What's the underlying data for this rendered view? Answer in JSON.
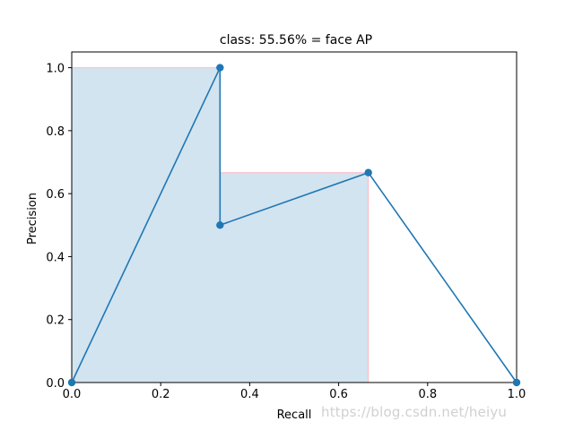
{
  "chart_data": {
    "type": "line",
    "title": "class: 55.56% = face AP",
    "xlabel": "Recall",
    "ylabel": "Precision",
    "xlim": [
      0.0,
      1.0
    ],
    "ylim": [
      0.0,
      1.05
    ],
    "xticks": [
      0.0,
      0.2,
      0.4,
      0.6,
      0.8,
      1.0
    ],
    "yticks": [
      0.0,
      0.2,
      0.4,
      0.6,
      0.8,
      1.0
    ],
    "xtick_labels": [
      "0.0",
      "0.2",
      "0.4",
      "0.6",
      "0.8",
      "1.0"
    ],
    "ytick_labels": [
      "0.0",
      "0.2",
      "0.4",
      "0.6",
      "0.8",
      "1.0"
    ],
    "grid": false,
    "series": [
      {
        "kind": "line-with-markers",
        "color": "#1f77b4",
        "x": [
          0.0,
          0.3333,
          0.3333,
          0.6667,
          1.0
        ],
        "y": [
          0.0,
          1.0,
          0.5,
          0.6667,
          0.0
        ]
      },
      {
        "kind": "filled-step-area",
        "fill_color": "#1f77b4",
        "fill_opacity": 0.2,
        "edge_color": "#ffb6c1",
        "x": [
          0.0,
          0.3333,
          0.3333,
          0.6667,
          0.6667
        ],
        "y": [
          1.0,
          1.0,
          0.6667,
          0.6667,
          0.0
        ]
      }
    ]
  },
  "watermark": "https://blog.csdn.net/heiyu"
}
